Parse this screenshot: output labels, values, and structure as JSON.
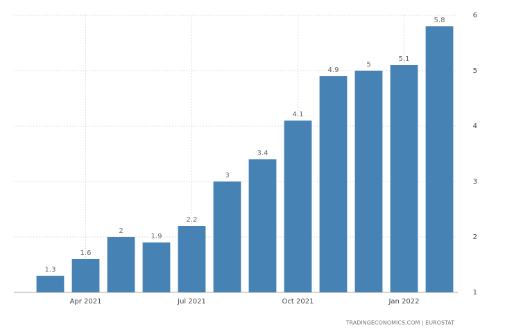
{
  "chart_data": {
    "type": "bar",
    "categories": [
      null,
      "Apr 2021",
      null,
      null,
      "Jul 2021",
      null,
      null,
      "Oct 2021",
      null,
      null,
      "Jan 2022",
      null
    ],
    "values": [
      1.3,
      1.6,
      2,
      1.9,
      2.2,
      3,
      3.4,
      4.1,
      4.9,
      5,
      5.1,
      5.8
    ],
    "color": "#4682b4",
    "ylim": [
      1,
      6
    ],
    "yticks": [
      1,
      2,
      3,
      4,
      5,
      6
    ],
    "grid": true,
    "y_axis_side": "right",
    "source": "TRADINGECONOMICS.COM | EUROSTAT"
  }
}
